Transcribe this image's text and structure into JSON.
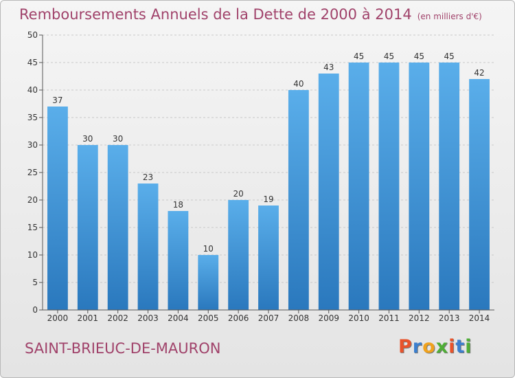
{
  "chart_data": {
    "type": "bar",
    "title": "Remboursements Annuels de la Dette de 2000 à 2014",
    "subtitle": "(en milliers d'€)",
    "categories": [
      "2000",
      "2001",
      "2002",
      "2003",
      "2004",
      "2005",
      "2006",
      "2007",
      "2008",
      "2009",
      "2010",
      "2011",
      "2012",
      "2013",
      "2014"
    ],
    "values": [
      37,
      30,
      30,
      23,
      18,
      10,
      20,
      19,
      40,
      43,
      45,
      45,
      45,
      45,
      42
    ],
    "ylim": [
      0,
      50
    ],
    "yticks": [
      0,
      5,
      10,
      15,
      20,
      25,
      30,
      35,
      40,
      45,
      50
    ],
    "grid": true,
    "legend": "none",
    "bar_color": "#3d8fd6"
  },
  "footer": {
    "commune": "SAINT-BRIEUC-DE-MAURON",
    "logo": "Proxiti"
  },
  "colors": {
    "title": "#a0426a",
    "logo_letters": [
      "#e8532b",
      "#3b7fcf",
      "#f0a21d",
      "#4fae36",
      "#e8532b",
      "#3b7fcf",
      "#4fae36"
    ]
  }
}
